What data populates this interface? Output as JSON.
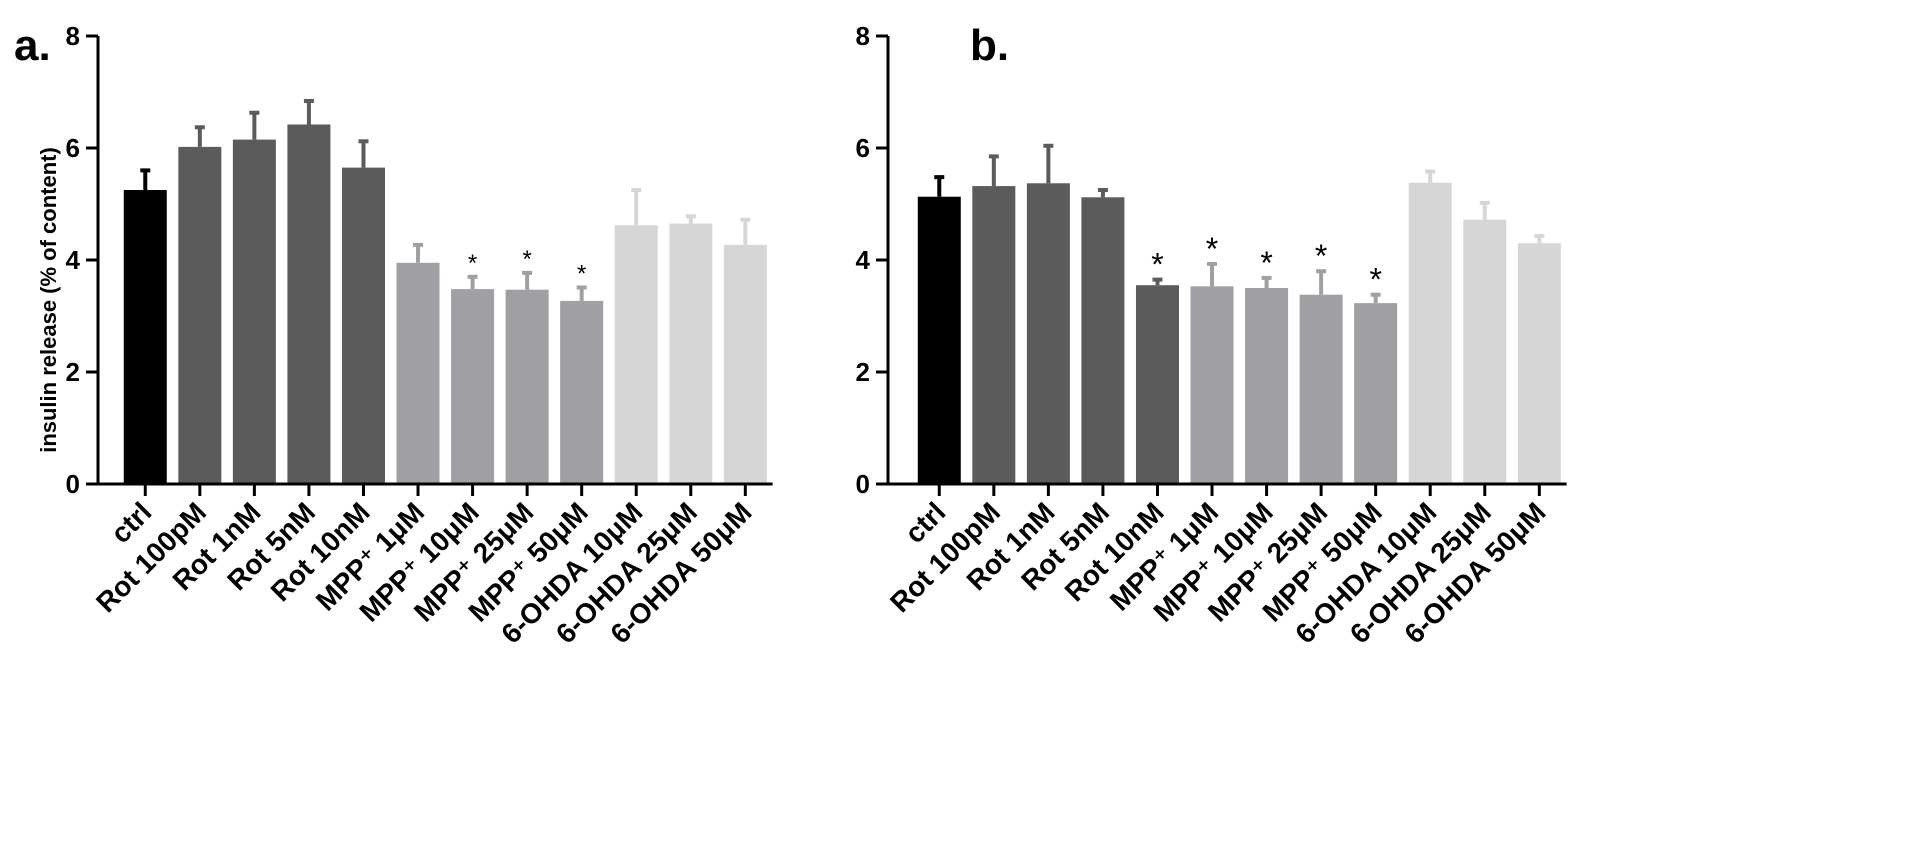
{
  "chart_data": [
    {
      "type": "bar",
      "panel_label": "a.",
      "ylabel": "insulin release (% of content)",
      "ylim": [
        0,
        8
      ],
      "yticks": [
        "0",
        "2",
        "4",
        "6",
        "8"
      ],
      "categories": [
        "ctrl",
        "Rot 100pM",
        "Rot 1nM",
        "Rot 5nM",
        "Rot 10nM",
        "MPP⁺ 1μM",
        "MPP⁺ 10μM",
        "MPP⁺ 25μM",
        "MPP⁺ 50μM",
        "6-OHDA 10μM",
        "6-OHDA 25μM",
        "6-OHDA 50μM"
      ],
      "values": [
        5.25,
        6.02,
        6.15,
        6.42,
        5.65,
        3.95,
        3.48,
        3.47,
        3.27,
        4.62,
        4.65,
        4.27
      ],
      "errors": [
        0.35,
        0.35,
        0.48,
        0.42,
        0.47,
        0.32,
        0.22,
        0.3,
        0.24,
        0.63,
        0.13,
        0.45
      ],
      "colors": [
        "#000000",
        "#5b5b5b",
        "#5b5b5b",
        "#5b5b5b",
        "#5b5b5b",
        "#a0a0a4",
        "#a0a0a4",
        "#a0a0a4",
        "#a0a0a4",
        "#d6d6d6",
        "#d6d6d6",
        "#d6d6d6"
      ],
      "significance": [
        "",
        "",
        "",
        "",
        "",
        "",
        "*",
        "*",
        "*",
        "",
        "",
        ""
      ]
    },
    {
      "type": "bar",
      "panel_label": "b.",
      "ylabel": "",
      "ylim": [
        0,
        8
      ],
      "yticks": [
        "0",
        "2",
        "4",
        "6",
        "8"
      ],
      "categories": [
        "ctrl",
        "Rot 100pM",
        "Rot 1nM",
        "Rot 5nM",
        "Rot 10nM",
        "MPP⁺ 1μM",
        "MPP⁺ 10μM",
        "MPP⁺ 25μM",
        "MPP⁺ 50μM",
        "6-OHDA 10μM",
        "6-OHDA 25μM",
        "6-OHDA 50μM"
      ],
      "values": [
        5.13,
        5.32,
        5.37,
        5.12,
        3.55,
        3.53,
        3.5,
        3.38,
        3.23,
        5.38,
        4.72,
        4.3
      ],
      "errors": [
        0.35,
        0.53,
        0.67,
        0.13,
        0.1,
        0.4,
        0.18,
        0.42,
        0.15,
        0.2,
        0.3,
        0.13
      ],
      "colors": [
        "#000000",
        "#5b5b5b",
        "#5b5b5b",
        "#5b5b5b",
        "#5b5b5b",
        "#a0a0a4",
        "#a0a0a4",
        "#a0a0a4",
        "#a0a0a4",
        "#d6d6d6",
        "#d6d6d6",
        "#d6d6d6"
      ],
      "significance": [
        "",
        "",
        "",
        "",
        "*",
        "*",
        "*",
        "*",
        "*",
        "",
        "",
        ""
      ]
    }
  ]
}
